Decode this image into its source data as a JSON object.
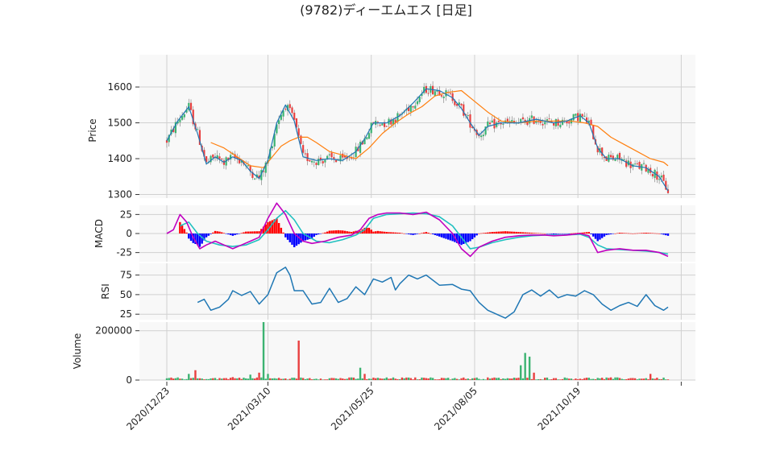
{
  "chart_data": {
    "type": "candlestick",
    "title": "(9782)ディーエムエス [日足]",
    "x_ticks": [
      "2020/12/23",
      "2021/03/10",
      "2021/05/25",
      "2021/08/05",
      "2021/10/19"
    ],
    "panels": [
      {
        "name": "price",
        "ylabel": "Price",
        "ylim": [
          1290,
          1690
        ],
        "yticks": [
          1300,
          1400,
          1500,
          1600
        ],
        "ma_short": [
          [
            0,
            1450
          ],
          [
            5,
            1505
          ],
          [
            10,
            1545
          ],
          [
            14,
            1470
          ],
          [
            18,
            1385
          ],
          [
            22,
            1405
          ],
          [
            26,
            1390
          ],
          [
            30,
            1405
          ],
          [
            34,
            1395
          ],
          [
            38,
            1365
          ],
          [
            42,
            1345
          ],
          [
            46,
            1395
          ],
          [
            50,
            1500
          ],
          [
            54,
            1550
          ],
          [
            58,
            1505
          ],
          [
            62,
            1405
          ],
          [
            68,
            1395
          ],
          [
            74,
            1400
          ],
          [
            80,
            1395
          ],
          [
            86,
            1420
          ],
          [
            90,
            1455
          ],
          [
            94,
            1500
          ],
          [
            100,
            1500
          ],
          [
            106,
            1520
          ],
          [
            112,
            1555
          ],
          [
            118,
            1595
          ],
          [
            124,
            1590
          ],
          [
            130,
            1570
          ],
          [
            134,
            1540
          ],
          [
            138,
            1500
          ],
          [
            142,
            1465
          ],
          [
            146,
            1490
          ],
          [
            152,
            1500
          ],
          [
            160,
            1500
          ],
          [
            168,
            1510
          ],
          [
            176,
            1500
          ],
          [
            182,
            1505
          ],
          [
            188,
            1520
          ],
          [
            192,
            1500
          ],
          [
            196,
            1430
          ],
          [
            200,
            1400
          ],
          [
            206,
            1400
          ],
          [
            212,
            1380
          ],
          [
            218,
            1375
          ],
          [
            224,
            1350
          ],
          [
            228,
            1310
          ]
        ],
        "ma_long": [
          [
            20,
            1445
          ],
          [
            26,
            1430
          ],
          [
            32,
            1405
          ],
          [
            38,
            1380
          ],
          [
            44,
            1375
          ],
          [
            48,
            1405
          ],
          [
            52,
            1435
          ],
          [
            56,
            1450
          ],
          [
            60,
            1460
          ],
          [
            64,
            1460
          ],
          [
            68,
            1445
          ],
          [
            74,
            1420
          ],
          [
            80,
            1410
          ],
          [
            86,
            1400
          ],
          [
            92,
            1430
          ],
          [
            98,
            1470
          ],
          [
            104,
            1500
          ],
          [
            110,
            1525
          ],
          [
            116,
            1545
          ],
          [
            122,
            1575
          ],
          [
            128,
            1585
          ],
          [
            134,
            1590
          ],
          [
            140,
            1560
          ],
          [
            146,
            1530
          ],
          [
            152,
            1505
          ],
          [
            160,
            1500
          ],
          [
            168,
            1505
          ],
          [
            176,
            1505
          ],
          [
            184,
            1505
          ],
          [
            190,
            1500
          ],
          [
            196,
            1490
          ],
          [
            202,
            1460
          ],
          [
            208,
            1440
          ],
          [
            214,
            1420
          ],
          [
            220,
            1400
          ],
          [
            226,
            1390
          ],
          [
            228,
            1380
          ]
        ]
      },
      {
        "name": "macd",
        "ylabel": "MACD",
        "ylim": [
          -37,
          37
        ],
        "yticks": [
          -25,
          0,
          25
        ],
        "macd_line": [
          [
            0,
            0
          ],
          [
            3,
            5
          ],
          [
            6,
            25
          ],
          [
            9,
            15
          ],
          [
            12,
            -5
          ],
          [
            15,
            -20
          ],
          [
            18,
            -15
          ],
          [
            22,
            -10
          ],
          [
            26,
            -15
          ],
          [
            30,
            -20
          ],
          [
            34,
            -15
          ],
          [
            38,
            -10
          ],
          [
            42,
            -5
          ],
          [
            46,
            20
          ],
          [
            50,
            40
          ],
          [
            54,
            25
          ],
          [
            58,
            0
          ],
          [
            62,
            -10
          ],
          [
            66,
            -13
          ],
          [
            72,
            -10
          ],
          [
            78,
            -5
          ],
          [
            84,
            -2
          ],
          [
            88,
            5
          ],
          [
            92,
            20
          ],
          [
            96,
            25
          ],
          [
            100,
            27
          ],
          [
            106,
            27
          ],
          [
            112,
            25
          ],
          [
            118,
            28
          ],
          [
            124,
            18
          ],
          [
            130,
            0
          ],
          [
            134,
            -20
          ],
          [
            138,
            -30
          ],
          [
            142,
            -18
          ],
          [
            148,
            -10
          ],
          [
            154,
            -5
          ],
          [
            160,
            -3
          ],
          [
            166,
            -2
          ],
          [
            172,
            -2
          ],
          [
            176,
            -3
          ],
          [
            182,
            -2
          ],
          [
            188,
            0
          ],
          [
            192,
            -3
          ],
          [
            196,
            -25
          ],
          [
            200,
            -22
          ],
          [
            206,
            -20
          ],
          [
            212,
            -22
          ],
          [
            218,
            -22
          ],
          [
            224,
            -25
          ],
          [
            228,
            -30
          ]
        ],
        "signal_line": [
          [
            6,
            10
          ],
          [
            10,
            15
          ],
          [
            14,
            0
          ],
          [
            18,
            -10
          ],
          [
            24,
            -15
          ],
          [
            30,
            -17
          ],
          [
            36,
            -15
          ],
          [
            42,
            -8
          ],
          [
            46,
            5
          ],
          [
            50,
            20
          ],
          [
            54,
            30
          ],
          [
            58,
            18
          ],
          [
            62,
            0
          ],
          [
            68,
            -10
          ],
          [
            74,
            -12
          ],
          [
            80,
            -8
          ],
          [
            86,
            -2
          ],
          [
            90,
            5
          ],
          [
            94,
            20
          ],
          [
            100,
            25
          ],
          [
            106,
            26
          ],
          [
            112,
            27
          ],
          [
            118,
            26
          ],
          [
            124,
            22
          ],
          [
            130,
            10
          ],
          [
            134,
            -5
          ],
          [
            138,
            -20
          ],
          [
            142,
            -18
          ],
          [
            148,
            -12
          ],
          [
            154,
            -8
          ],
          [
            160,
            -5
          ],
          [
            166,
            -3
          ],
          [
            172,
            -2
          ],
          [
            180,
            -2
          ],
          [
            188,
            -1
          ],
          [
            192,
            -5
          ],
          [
            196,
            -15
          ],
          [
            200,
            -20
          ],
          [
            206,
            -21
          ],
          [
            212,
            -22
          ],
          [
            218,
            -23
          ],
          [
            224,
            -25
          ],
          [
            228,
            -27
          ]
        ]
      },
      {
        "name": "rsi",
        "ylabel": "RSI",
        "ylim": [
          18,
          90
        ],
        "yticks": [
          25,
          50,
          75
        ],
        "rsi_line": [
          [
            14,
            40
          ],
          [
            17,
            44
          ],
          [
            20,
            30
          ],
          [
            24,
            34
          ],
          [
            28,
            44
          ],
          [
            30,
            55
          ],
          [
            34,
            49
          ],
          [
            38,
            54
          ],
          [
            42,
            38
          ],
          [
            46,
            50
          ],
          [
            50,
            78
          ],
          [
            54,
            85
          ],
          [
            56,
            75
          ],
          [
            58,
            55
          ],
          [
            62,
            55
          ],
          [
            66,
            38
          ],
          [
            70,
            40
          ],
          [
            74,
            58
          ],
          [
            78,
            40
          ],
          [
            82,
            45
          ],
          [
            86,
            60
          ],
          [
            90,
            50
          ],
          [
            94,
            70
          ],
          [
            98,
            66
          ],
          [
            102,
            72
          ],
          [
            104,
            56
          ],
          [
            106,
            64
          ],
          [
            110,
            75
          ],
          [
            114,
            70
          ],
          [
            118,
            75
          ],
          [
            124,
            62
          ],
          [
            130,
            63
          ],
          [
            134,
            57
          ],
          [
            138,
            55
          ],
          [
            142,
            40
          ],
          [
            146,
            30
          ],
          [
            150,
            25
          ],
          [
            154,
            20
          ],
          [
            158,
            28
          ],
          [
            162,
            50
          ],
          [
            166,
            56
          ],
          [
            170,
            48
          ],
          [
            174,
            56
          ],
          [
            178,
            46
          ],
          [
            182,
            50
          ],
          [
            186,
            48
          ],
          [
            190,
            55
          ],
          [
            194,
            50
          ],
          [
            198,
            38
          ],
          [
            202,
            30
          ],
          [
            206,
            36
          ],
          [
            210,
            40
          ],
          [
            214,
            35
          ],
          [
            218,
            50
          ],
          [
            222,
            36
          ],
          [
            226,
            30
          ],
          [
            228,
            34
          ]
        ]
      },
      {
        "name": "volume",
        "ylabel": "Volume",
        "ylim": [
          0,
          235000
        ],
        "yticks": [
          0,
          200000
        ]
      }
    ],
    "up_color": "#3cb371",
    "down_color": "#e84040",
    "ma_short_color": "#1f77b4",
    "ma_long_color": "#ff7f0e",
    "macd_color": "#c000c0",
    "signal_color": "#20c0c0",
    "hist_pos_color": "#ff0000",
    "hist_neg_color": "#0000ff",
    "rsi_color": "#1f77b4"
  }
}
